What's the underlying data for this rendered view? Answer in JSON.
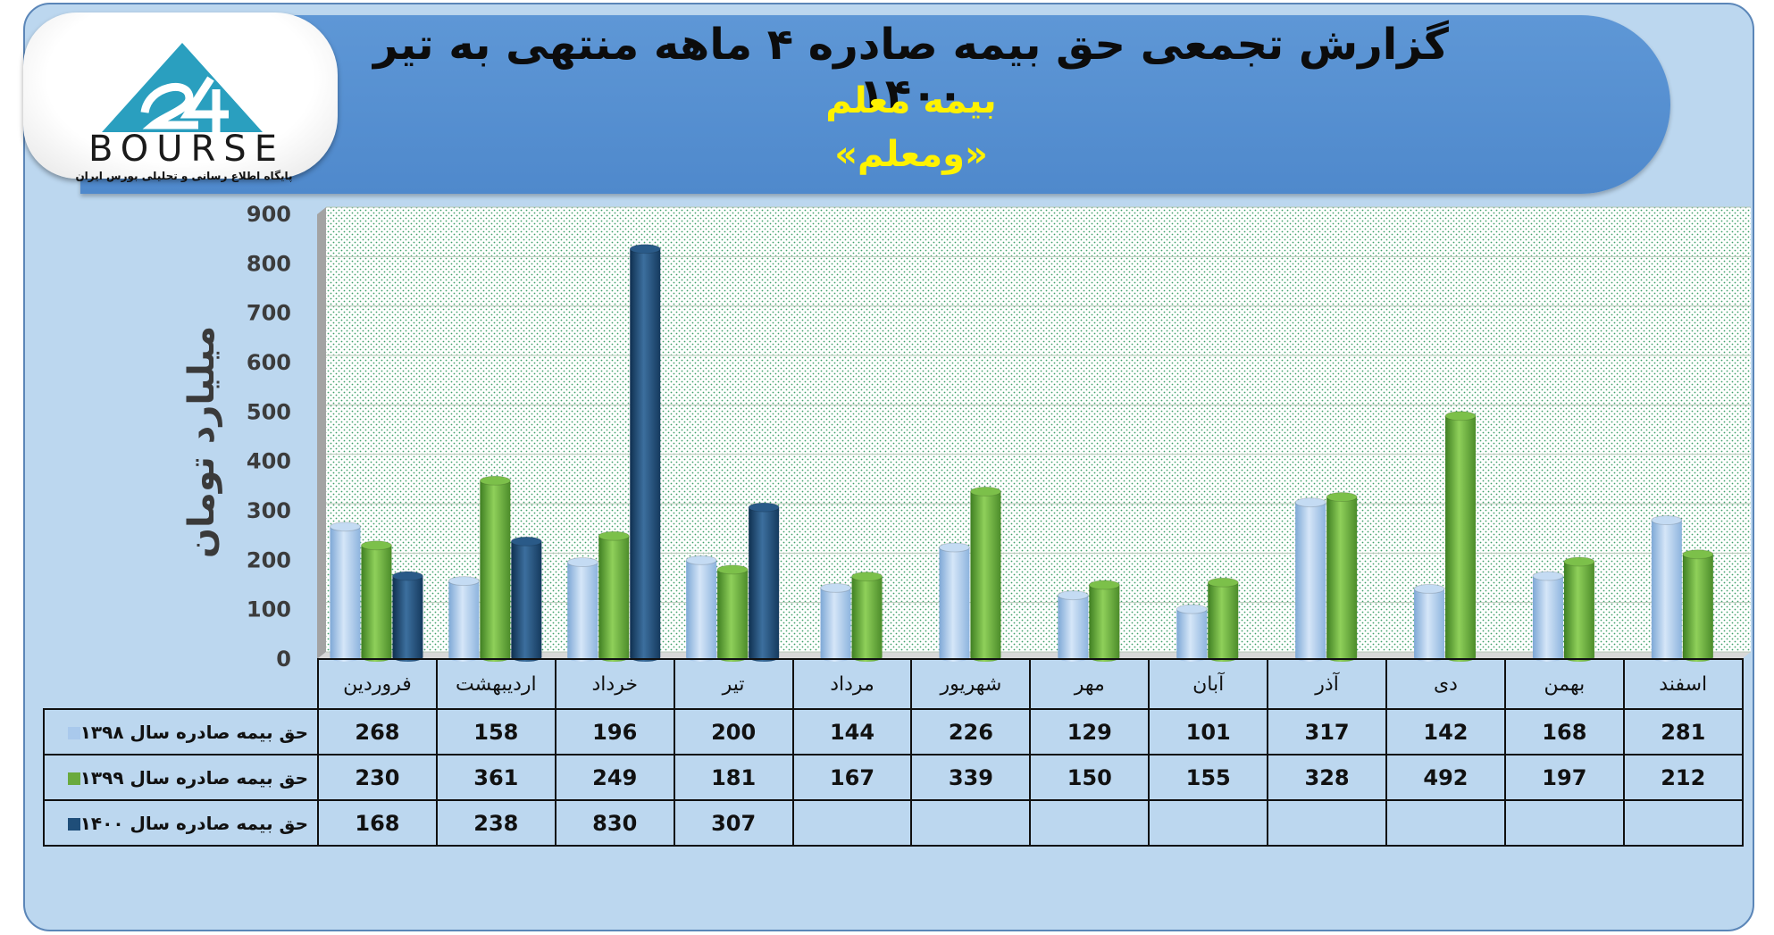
{
  "header": {
    "title": "گزارش تجمعی حق بیمه صادره ۴ ماهه منتهی به تیر ۱۴۰۰",
    "subtitle": "بیمه معلم",
    "symbol": "«ومعلم»"
  },
  "logo": {
    "wordmark": "BOURSE",
    "caption": "پایگاه اطلاع رسانی و تحلیلی بورس ایران"
  },
  "colors": {
    "series_1398": "#a9c9ec",
    "series_1399": "#6aaa3d",
    "series_1400": "#1f4e79",
    "header": "#5b95d5",
    "title_yellow": "#fff200"
  },
  "chart_data": {
    "type": "bar",
    "ylabel": "میلیارد تومان",
    "ylim": [
      0,
      900
    ],
    "yticks": [
      0,
      100,
      200,
      300,
      400,
      500,
      600,
      700,
      800,
      900
    ],
    "categories": [
      "فروردین",
      "اردیبهشت",
      "خرداد",
      "تیر",
      "مرداد",
      "شهریور",
      "مهر",
      "آبان",
      "آذر",
      "دی",
      "بهمن",
      "اسفند"
    ],
    "series": [
      {
        "name": "حق بیمه صادره سال ۱۳۹۸",
        "values": [
          268,
          158,
          196,
          200,
          144,
          226,
          129,
          101,
          317,
          142,
          168,
          281
        ]
      },
      {
        "name": "حق بیمه صادره سال ۱۳۹۹",
        "values": [
          230,
          361,
          249,
          181,
          167,
          339,
          150,
          155,
          328,
          492,
          197,
          212
        ]
      },
      {
        "name": "حق بیمه صادره سال ۱۴۰۰",
        "values": [
          168,
          238,
          830,
          307,
          null,
          null,
          null,
          null,
          null,
          null,
          null,
          null
        ]
      }
    ],
    "grid": true,
    "legend": "data table below chart"
  }
}
